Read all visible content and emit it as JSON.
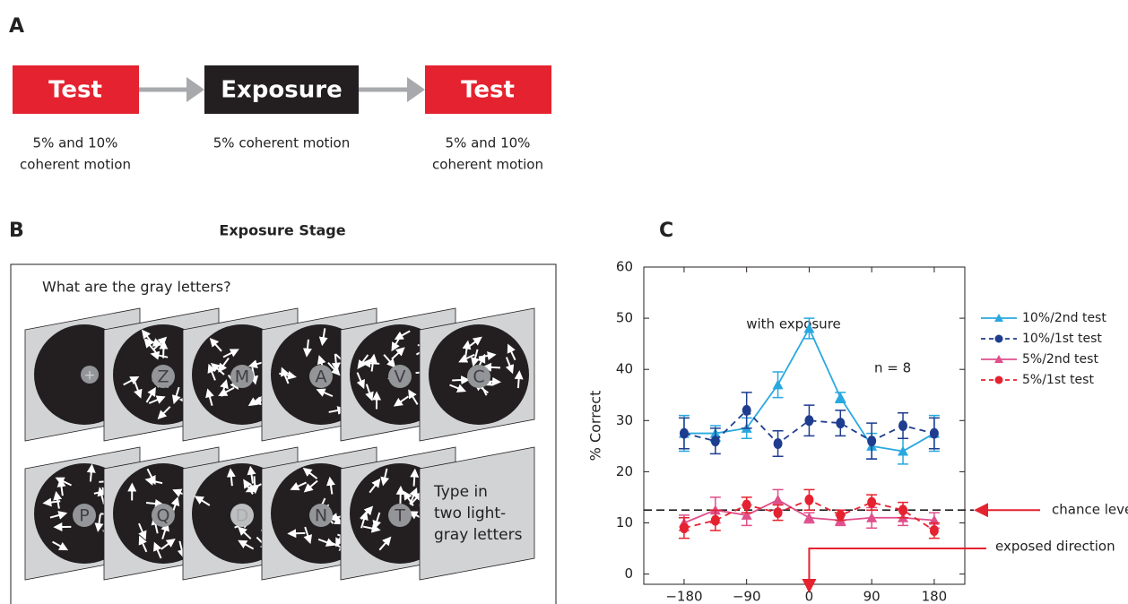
{
  "panel_a": {
    "label": "A",
    "steps": [
      {
        "label": "Test",
        "caption": [
          "5% and 10%",
          "coherent motion"
        ]
      },
      {
        "label": "Exposure",
        "caption": [
          "5% coherent motion"
        ]
      },
      {
        "label": "Test",
        "caption": [
          "5% and 10%",
          "coherent motion"
        ]
      }
    ]
  },
  "panel_b": {
    "label": "B",
    "title": "Exposure Stage",
    "prompt": "What are the gray letters?",
    "fixation": "+",
    "row1_letters": [
      "Z",
      "M",
      "A",
      "V",
      "C"
    ],
    "row2_letters": [
      "P",
      "Q",
      "D",
      "N",
      "T"
    ],
    "final_text": [
      "Type in",
      "two light-",
      "gray letters"
    ]
  },
  "chart_data": {
    "type": "line",
    "panel_label": "C",
    "ylabel": "% Correct",
    "x": [
      -180,
      -135,
      -90,
      -45,
      0,
      45,
      90,
      135,
      180
    ],
    "xlim": [
      -238,
      224
    ],
    "ylim": [
      -2,
      60
    ],
    "xticks": [
      {
        "value": -180,
        "label": "−180"
      },
      {
        "value": -90,
        "label": "−90"
      },
      0,
      90,
      180
    ],
    "yticks": [
      0,
      10,
      20,
      30,
      40,
      50,
      60
    ],
    "series": [
      {
        "name": "10%/2nd test",
        "color": "#29a8e0",
        "marker": "triangle",
        "style": "solid",
        "values": [
          27.5,
          27.5,
          28.5,
          37,
          48,
          34.5,
          25,
          24,
          27.5
        ],
        "errors": [
          3.5,
          1.5,
          2,
          2.5,
          2,
          1,
          2.5,
          2.5,
          3.5
        ]
      },
      {
        "name": "10%/1st test",
        "color": "#1f3d8f",
        "marker": "circle",
        "style": "dashed",
        "values": [
          27.5,
          26,
          32,
          25.5,
          30,
          29.5,
          26,
          29,
          27.5
        ],
        "errors": [
          3,
          2.5,
          3.5,
          2.5,
          3,
          2.5,
          3.5,
          2.5,
          3
        ]
      },
      {
        "name": "5%/2nd test",
        "color": "#df4f8b",
        "marker": "triangle",
        "style": "solid",
        "values": [
          10,
          12.5,
          11.5,
          14.5,
          11,
          10.5,
          11,
          11,
          10.5
        ],
        "errors": [
          1.5,
          2.5,
          2,
          2,
          1,
          1,
          2,
          1.5,
          1.5
        ]
      },
      {
        "name": "5%/1st test",
        "color": "#e5222f",
        "marker": "circle",
        "style": "dashed",
        "values": [
          9,
          10.5,
          13.5,
          12,
          14.5,
          11.5,
          14,
          12.5,
          8.5
        ],
        "errors": [
          2,
          2,
          1.5,
          1.5,
          2,
          1,
          1.5,
          1.5,
          1.5
        ]
      }
    ],
    "annotations": [
      "with exposure",
      "n = 8"
    ],
    "chance_level": 12.5,
    "chance_label": "chance level",
    "exposed_direction": 0,
    "exposed_label": "exposed direction",
    "legend": "right"
  }
}
